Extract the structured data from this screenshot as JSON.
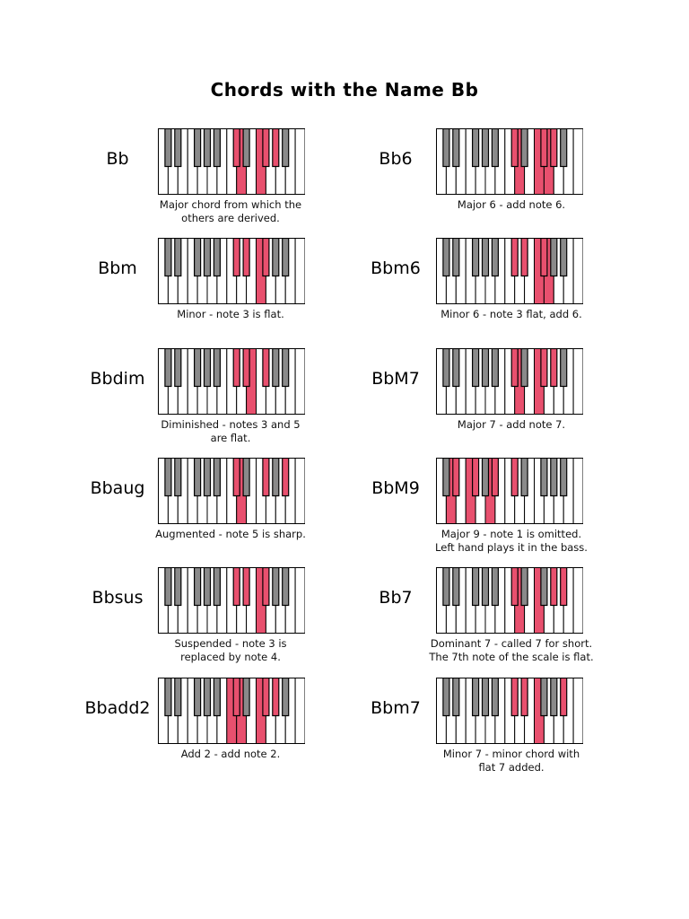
{
  "title": "Chords with the Name Bb",
  "colors": {
    "highlight": "#e8506e",
    "black_key": "#111111",
    "black_key_gray": "#8a8a8a",
    "white_key": "#ffffff"
  },
  "chords": [
    {
      "name": "Bb",
      "desc_lines": [
        "Major chord from which the",
        "others are derived."
      ],
      "black": [
        5,
        7,
        8
      ],
      "white": [
        8,
        10
      ]
    },
    {
      "name": "Bb6",
      "desc_lines": [
        "Major 6 - add note 6."
      ],
      "black": [
        5,
        7,
        8
      ],
      "white": [
        8,
        10,
        11
      ]
    },
    {
      "name": "Bbm",
      "desc_lines": [
        "Minor - note 3 is flat."
      ],
      "black": [
        5,
        6,
        7
      ],
      "white": [
        10
      ]
    },
    {
      "name": "Bbm6",
      "desc_lines": [
        "Minor 6 - note 3 flat, add 6."
      ],
      "black": [
        5,
        6,
        7
      ],
      "white": [
        10,
        11
      ]
    },
    {
      "name": "Bbdim",
      "desc_lines": [
        "Diminished - notes 3 and 5",
        "are flat."
      ],
      "black": [
        5,
        6,
        7
      ],
      "white": [
        9
      ]
    },
    {
      "name": "BbM7",
      "desc_lines": [
        "Major 7 - add note 7."
      ],
      "black": [
        5,
        7,
        8
      ],
      "white": [
        8,
        10
      ]
    },
    {
      "name": "Bbaug",
      "desc_lines": [
        "Augmented - note 5 is sharp."
      ],
      "black": [
        5,
        7,
        9
      ],
      "white": [
        8
      ]
    },
    {
      "name": "BbM9",
      "desc_lines": [
        "Major 9 - note 1 is omitted.",
        "Left hand plays it in the bass."
      ],
      "black": [
        1,
        2,
        4,
        5
      ],
      "white": [
        1,
        3,
        5
      ]
    },
    {
      "name": "Bbsus",
      "desc_lines": [
        "Suspended - note 3 is",
        "replaced by note 4."
      ],
      "black": [
        5,
        6,
        7
      ],
      "white": [
        10
      ]
    },
    {
      "name": "Bb7",
      "desc_lines": [
        "Dominant 7 - called 7 for short.",
        "The 7th note of the scale is flat."
      ],
      "black": [
        5,
        8,
        9
      ],
      "white": [
        8,
        10
      ]
    },
    {
      "name": "Bbadd2",
      "desc_lines": [
        "Add 2 - add note 2."
      ],
      "black": [
        5,
        7,
        8
      ],
      "white": [
        7,
        8,
        10
      ]
    },
    {
      "name": "Bbm7",
      "desc_lines": [
        "Minor 7 - minor chord with",
        "flat 7 added."
      ],
      "black": [
        5,
        6,
        9
      ],
      "white": [
        10
      ]
    }
  ]
}
